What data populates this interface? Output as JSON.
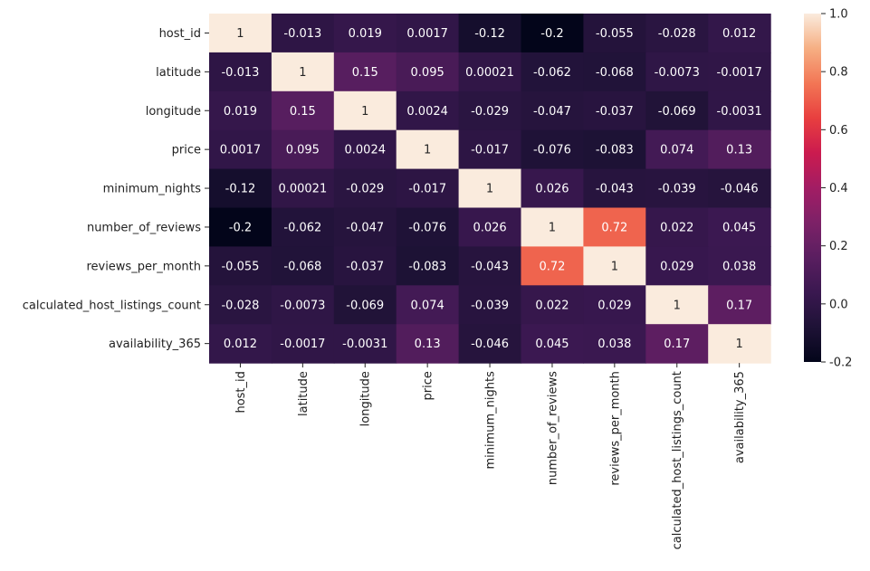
{
  "chart_data": {
    "type": "heatmap",
    "title": "",
    "xlabel": "",
    "ylabel": "",
    "labels": [
      "host_id",
      "latitude",
      "longitude",
      "price",
      "minimum_nights",
      "number_of_reviews",
      "reviews_per_month",
      "calculated_host_listings_count",
      "availability_365"
    ],
    "values": [
      [
        1,
        -0.013,
        0.019,
        0.0017,
        -0.12,
        -0.2,
        -0.055,
        -0.028,
        0.012
      ],
      [
        -0.013,
        1,
        0.15,
        0.095,
        0.00021,
        -0.062,
        -0.068,
        -0.0073,
        -0.0017
      ],
      [
        0.019,
        0.15,
        1,
        0.0024,
        -0.029,
        -0.047,
        -0.037,
        -0.069,
        -0.0031
      ],
      [
        0.0017,
        0.095,
        0.0024,
        1,
        -0.017,
        -0.076,
        -0.083,
        0.074,
        0.13
      ],
      [
        -0.12,
        0.00021,
        -0.029,
        -0.017,
        1,
        0.026,
        -0.043,
        -0.039,
        -0.046
      ],
      [
        -0.2,
        -0.062,
        -0.047,
        -0.076,
        0.026,
        1,
        0.72,
        0.022,
        0.045
      ],
      [
        -0.055,
        -0.068,
        -0.037,
        -0.083,
        -0.043,
        0.72,
        1,
        0.029,
        0.038
      ],
      [
        -0.028,
        -0.0073,
        -0.069,
        0.074,
        -0.039,
        0.022,
        0.029,
        1,
        0.17
      ],
      [
        0.012,
        -0.0017,
        -0.0031,
        0.13,
        -0.046,
        0.045,
        0.038,
        0.17,
        1
      ]
    ],
    "cell_labels": [
      [
        "1",
        "-0.013",
        "0.019",
        "0.0017",
        "-0.12",
        "-0.2",
        "-0.055",
        "-0.028",
        "0.012"
      ],
      [
        "-0.013",
        "1",
        "0.15",
        "0.095",
        "0.00021",
        "-0.062",
        "-0.068",
        "-0.0073",
        "-0.0017"
      ],
      [
        "0.019",
        "0.15",
        "1",
        "0.0024",
        "-0.029",
        "-0.047",
        "-0.037",
        "-0.069",
        "-0.0031"
      ],
      [
        "0.0017",
        "0.095",
        "0.0024",
        "1",
        "-0.017",
        "-0.076",
        "-0.083",
        "0.074",
        "0.13"
      ],
      [
        "-0.12",
        "0.00021",
        "-0.029",
        "-0.017",
        "1",
        "0.026",
        "-0.043",
        "-0.039",
        "-0.046"
      ],
      [
        "-0.2",
        "-0.062",
        "-0.047",
        "-0.076",
        "0.026",
        "1",
        "0.72",
        "0.022",
        "0.045"
      ],
      [
        "-0.055",
        "-0.068",
        "-0.037",
        "-0.083",
        "-0.043",
        "0.72",
        "1",
        "0.029",
        "0.038"
      ],
      [
        "-0.028",
        "-0.0073",
        "-0.069",
        "0.074",
        "-0.039",
        "0.022",
        "0.029",
        "1",
        "0.17"
      ],
      [
        "0.012",
        "-0.0017",
        "-0.0031",
        "0.13",
        "-0.046",
        "0.045",
        "0.038",
        "0.17",
        "1"
      ]
    ],
    "colormap": "rocket",
    "vmin": -0.2,
    "vmax": 1.0,
    "colorbar_ticks": [
      "-0.2",
      "0.0",
      "0.2",
      "0.4",
      "0.6",
      "0.8",
      "1.0"
    ],
    "colorbar_tick_values": [
      -0.2,
      0.0,
      0.2,
      0.4,
      0.6,
      0.8,
      1.0
    ],
    "legend_position": "right"
  }
}
